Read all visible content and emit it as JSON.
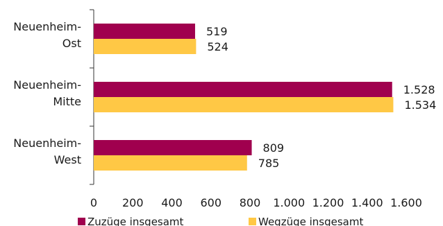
{
  "chart_data": {
    "type": "bar",
    "orientation": "horizontal",
    "title": "",
    "xlabel": "",
    "ylabel": "",
    "categories": [
      [
        "Neuenheim-",
        "Ost"
      ],
      [
        "Neuenheim-",
        "Mitte"
      ],
      [
        "Neuenheim-",
        "West"
      ]
    ],
    "series": [
      {
        "name": "Zuzüge insgesamt",
        "color": "#a0004e",
        "values": [
          519,
          1528,
          809
        ],
        "labels": [
          "519",
          "1.528",
          "809"
        ]
      },
      {
        "name": "Wegzüge insgesamt",
        "color": "#ffc845",
        "values": [
          524,
          1534,
          785
        ],
        "labels": [
          "524",
          "1.534",
          "785"
        ]
      }
    ],
    "xlim": [
      0,
      1600
    ],
    "ticks": [
      0,
      200,
      400,
      600,
      800,
      1000,
      1200,
      1400,
      1600
    ],
    "tick_labels": [
      "0",
      "200",
      "400",
      "600",
      "800",
      "1.000",
      "1.200",
      "1.400",
      "1.600"
    ],
    "grid": false,
    "legend": "bottom"
  }
}
